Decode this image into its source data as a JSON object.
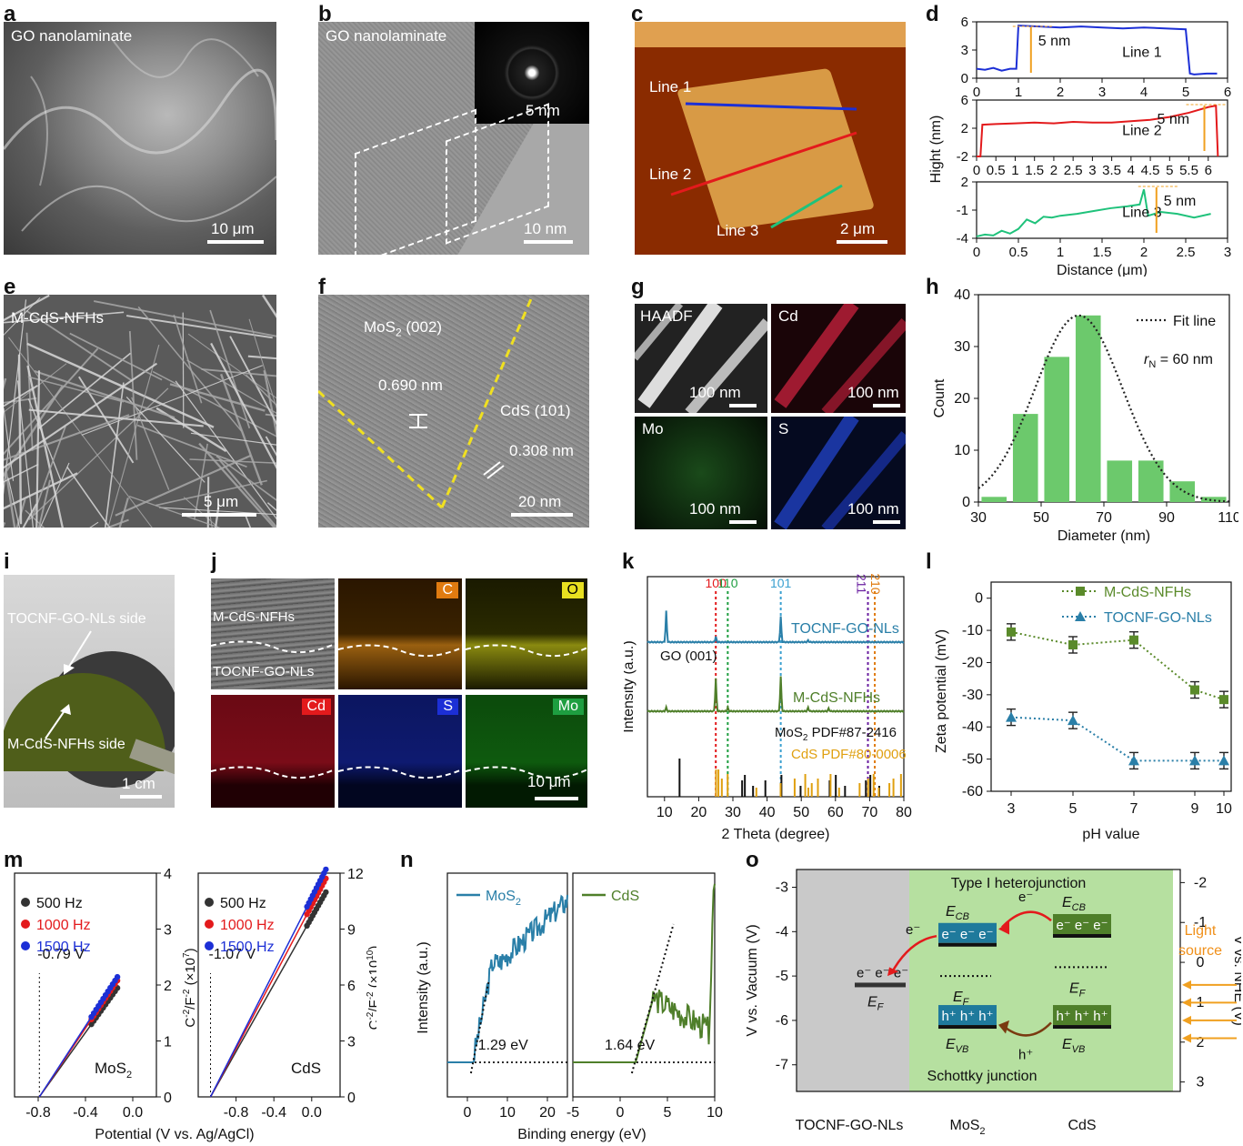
{
  "panels": {
    "a": {
      "label": "a",
      "caption": "GO nanolaminate",
      "scale": "10 μm"
    },
    "b": {
      "label": "b",
      "caption": "GO nanolaminate",
      "scale": "10 nm",
      "inset_scale": "5 nm"
    },
    "c": {
      "label": "c",
      "scale": "2 μm",
      "lines": [
        "Line 1",
        "Line 2",
        "Line 3"
      ]
    },
    "e": {
      "label": "e",
      "caption": "M-CdS-NFHs",
      "scale": "5 μm"
    },
    "f": {
      "label": "f",
      "mos2": "MoS",
      "mos2_sub": "2",
      "mos2_plane": " (002)",
      "cds": "CdS (101)",
      "d1": "0.690 nm",
      "d2": "0.308 nm",
      "scale": "20 nm"
    },
    "g": {
      "label": "g",
      "tiles": [
        "HAADF",
        "Cd",
        "Mo",
        "S"
      ],
      "scale": "100 nm"
    },
    "i": {
      "label": "i",
      "top": "TOCNF-GO-NLs side",
      "bottom": "M-CdS-NFHs side",
      "scale": "1 cm"
    },
    "j": {
      "label": "j",
      "layer1": "M-CdS-NFHs",
      "layer2": "TOCNF-GO-NLs",
      "elements": [
        "C",
        "O",
        "Cd",
        "S",
        "Mo"
      ],
      "scale": "10 μm"
    }
  },
  "chart_data": [
    {
      "id": "d",
      "type": "line",
      "ylabel": "Hight (nm)",
      "xlabel": "Distance (μm)",
      "subplots": [
        {
          "name": "Line 1",
          "color": "#1c2fd6",
          "xlim": [
            0,
            6
          ],
          "ylim": [
            0,
            6
          ],
          "yticks": [
            0,
            3,
            6
          ],
          "xticks": [
            0,
            1,
            2,
            3,
            4,
            5,
            6
          ],
          "annotation": "5 nm",
          "x": [
            0,
            0.2,
            0.4,
            0.6,
            0.8,
            0.95,
            1.0,
            1.5,
            2,
            2.5,
            3,
            3.5,
            4,
            4.5,
            5.0,
            5.1,
            5.2,
            5.5,
            5.75
          ],
          "y": [
            1.0,
            0.9,
            1.1,
            0.8,
            1.0,
            1.0,
            5.6,
            5.5,
            5.4,
            5.5,
            5.4,
            5.3,
            5.4,
            5.3,
            5.2,
            0.5,
            0.4,
            0.5,
            0.5
          ]
        },
        {
          "name": "Line 2",
          "color": "#e31a1c",
          "xlim": [
            0,
            6.5
          ],
          "ylim": [
            -2,
            6
          ],
          "yticks": [
            -2,
            2,
            6
          ],
          "xticks": [
            0,
            0.5,
            1,
            1.5,
            2,
            2.5,
            3,
            3.5,
            4,
            4.5,
            5,
            5.5,
            6
          ],
          "annotation": "5 nm",
          "x": [
            0,
            0.1,
            0.15,
            0.5,
            1,
            1.5,
            2,
            2.5,
            3,
            3.5,
            4,
            4.5,
            5,
            5.5,
            6,
            6.2,
            6.25
          ],
          "y": [
            -2,
            -2,
            2.5,
            2.6,
            2.7,
            2.8,
            2.7,
            2.9,
            2.8,
            2.8,
            3.0,
            3.2,
            3.6,
            4.2,
            5.0,
            5.2,
            -2
          ]
        },
        {
          "name": "Line 3",
          "color": "#1fc27b",
          "xlim": [
            0,
            3
          ],
          "ylim": [
            -4,
            2
          ],
          "yticks": [
            -4,
            -1,
            2
          ],
          "xticks": [
            0,
            0.5,
            1,
            1.5,
            2,
            2.5,
            3
          ],
          "annotation": "5 nm",
          "x": [
            0,
            0.1,
            0.2,
            0.3,
            0.4,
            0.5,
            0.6,
            0.7,
            0.8,
            0.9,
            1.0,
            1.2,
            1.4,
            1.6,
            1.8,
            1.95,
            2.0,
            2.05,
            2.2,
            2.4,
            2.6,
            2.8
          ],
          "y": [
            -3.8,
            -3.6,
            -3.7,
            -3.2,
            -3.5,
            -3.0,
            -2.0,
            -2.4,
            -1.7,
            -1.8,
            -1.6,
            -1.4,
            -1.1,
            -0.8,
            -0.6,
            -0.4,
            1.2,
            -1.6,
            -1.2,
            -1.4,
            -1.8,
            -1.4
          ]
        }
      ]
    },
    {
      "id": "h",
      "type": "bar",
      "xlabel": "Diameter (nm)",
      "ylabel": "Count",
      "categories": [
        35,
        45,
        55,
        65,
        75,
        85,
        95,
        105
      ],
      "values": [
        1,
        17,
        28,
        36,
        8,
        8,
        4,
        1
      ],
      "xlim": [
        30,
        110
      ],
      "ylim": [
        0,
        40
      ],
      "xticks": [
        30,
        50,
        70,
        90,
        110
      ],
      "yticks": [
        0,
        10,
        20,
        30,
        40
      ],
      "legend": "Fit line",
      "annotation_r": "r",
      "annotation_sub": "N",
      "annotation_val": " = 60 nm",
      "bar_color": "#6cc96c"
    },
    {
      "id": "k",
      "type": "line",
      "xlabel": "2 Theta (degree)",
      "ylabel": "Intensity (a.u.)",
      "xlim": [
        5,
        80
      ],
      "xticks": [
        10,
        20,
        30,
        40,
        50,
        60,
        70,
        80
      ],
      "series": [
        {
          "name": "TOCNF-GO-NLs",
          "color": "#2a7fa8"
        },
        {
          "name": "M-CdS-NFHs",
          "color": "#4f7f2a"
        }
      ],
      "annotations": {
        "go": "GO (001)",
        "mos2_pdf": "MoS",
        "mos2_pdf_sub": "2",
        "mos2_pdf_rest": " PDF#87-2416",
        "cds_pdf": "CdS PDF#80-0006"
      },
      "peak_markers": [
        {
          "label": "100",
          "pos": 25,
          "color": "#e31a1c"
        },
        {
          "label": "110",
          "pos": 28.5,
          "color": "#1e9e40"
        },
        {
          "label": "101",
          "pos": 44,
          "color": "#3aa0d0"
        },
        {
          "label": "211",
          "pos": 69.5,
          "color": "#6a1fa0"
        },
        {
          "label": "210",
          "pos": 71.5,
          "color": "#e07b10"
        }
      ],
      "mos2_ref": [
        14.4,
        32.7,
        33.5,
        35.9,
        39.5,
        44.2,
        49.8,
        58.3,
        60.1,
        62.8,
        68.9,
        70.2,
        72.8
      ],
      "cds_ref": [
        24.8,
        25.5,
        26.5,
        28.2,
        36.6,
        43.7,
        47.8,
        50.9,
        51.8,
        52.8,
        54.6,
        58.3,
        60.8,
        66.8,
        69.3,
        70.9,
        72.4,
        75.5,
        76.7,
        78.9
      ]
    },
    {
      "id": "l",
      "type": "line",
      "xlabel": "pH value",
      "ylabel": "Zeta potential (mV)",
      "categories": [
        3,
        5,
        7,
        9,
        10
      ],
      "ylim": [
        -60,
        5
      ],
      "yticks": [
        0,
        -10,
        -20,
        -30,
        -40,
        -50,
        -60
      ],
      "series": [
        {
          "name": "M-CdS-NFHs",
          "color": "#5a8a2a",
          "values": [
            -10.5,
            -14.5,
            -13,
            -28.5,
            -31.5
          ]
        },
        {
          "name": "TOCNF-GO-NLs",
          "color": "#2a7fa8",
          "values": [
            -37,
            -38,
            -50.5,
            -50.5,
            -50.5
          ]
        }
      ]
    },
    {
      "id": "m",
      "type": "scatter",
      "xlabel": "Potential (V vs. Ag/AgCl)",
      "legend": [
        "500 Hz",
        "1000 Hz",
        "1500 Hz"
      ],
      "colors": [
        "#333333",
        "#e31a1c",
        "#1c2fd6"
      ],
      "subplots": [
        {
          "name": "MoS",
          "sub": "2",
          "intercept": "-0.79 V",
          "xlim": [
            -1.0,
            0.2
          ],
          "ylim": [
            0,
            4
          ],
          "yticks": [
            0,
            1,
            2,
            3,
            4
          ],
          "xticks": [
            -0.8,
            -0.4,
            0.0
          ],
          "ylabel": "C",
          "ylabel_sup": "-2",
          "ylabel_rest": "/F",
          "ylabel_sup2": "-2",
          "ylabel_end": " (×10",
          "ylabel_exp": "7",
          "ylabel_close": ")"
        },
        {
          "name": "CdS",
          "intercept": "-1.07 V",
          "xlim": [
            -1.2,
            0.3
          ],
          "ylim": [
            0,
            12
          ],
          "yticks": [
            0,
            3,
            6,
            9,
            12
          ],
          "xticks": [
            -0.8,
            -0.4,
            0.0
          ],
          "ylabel": "C",
          "ylabel_sup": "-2",
          "ylabel_rest": "/F",
          "ylabel_sup2": "-2",
          "ylabel_end": " (×10",
          "ylabel_exp": "10",
          "ylabel_close": ")"
        }
      ]
    },
    {
      "id": "n",
      "type": "line",
      "xlabel": "Binding energy (eV)",
      "ylabel": "Intensity (a.u.)",
      "subplots": [
        {
          "name": "MoS",
          "sub": "2",
          "color": "#2a7fa8",
          "gap": "1.29 eV",
          "xlim": [
            -5,
            25
          ],
          "xticks": [
            0,
            10,
            20
          ]
        },
        {
          "name": "CdS",
          "color": "#4f7f2a",
          "gap": "1.64 eV",
          "xlim": [
            -5,
            10
          ],
          "xticks": [
            -5,
            0,
            5,
            10
          ]
        }
      ]
    },
    {
      "id": "o",
      "type": "diagram",
      "title": "Type I heterojunction",
      "bottom": "Schottky junction",
      "ylabel_left": "V vs. Vacuum (V)",
      "ylabel_right": "V vs. NHE (V)",
      "left_ticks": [
        -3,
        -4,
        -5,
        -6,
        -7
      ],
      "right_ticks": [
        -2,
        -1,
        0,
        1,
        2,
        3
      ],
      "categories": [
        "TOCNF-GO-NLs",
        "MoS",
        "CdS"
      ],
      "mos2_sub": "2",
      "light": [
        "Light",
        "source"
      ],
      "levels": {
        "ecb": "E",
        "cb": "CB",
        "ef": "E",
        "f": "F",
        "evb": "E",
        "vb": "VB"
      },
      "electrons": "e⁻ e⁻ e⁻",
      "holes": "h⁺ h⁺ h⁺",
      "e": "e⁻",
      "h": "h⁺"
    }
  ]
}
